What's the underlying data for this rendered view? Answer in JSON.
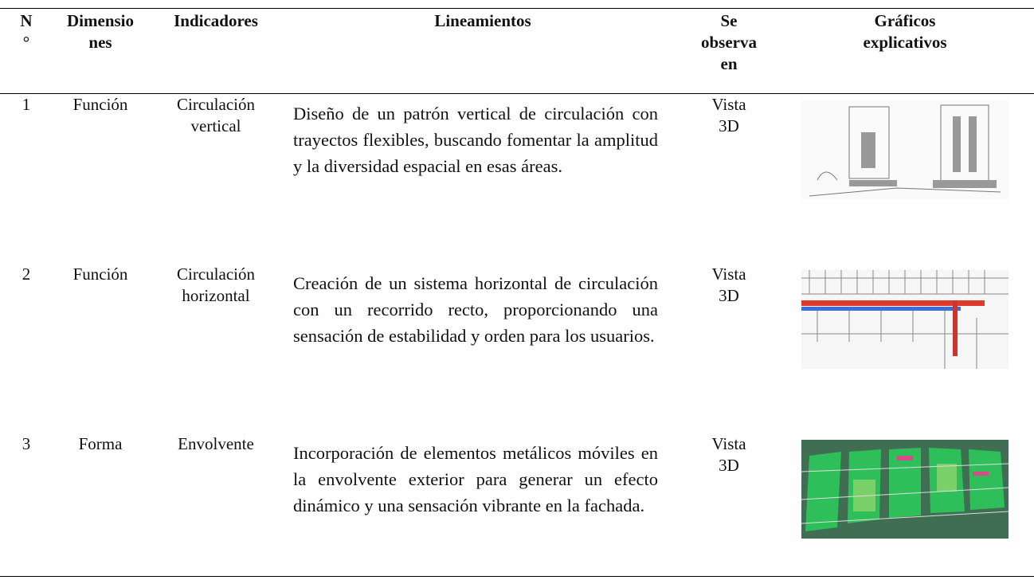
{
  "table": {
    "header": [
      "N°",
      "Dimensiones",
      "Indicadores",
      "Lineamientos",
      "Se observa en",
      "Gráficos explicativos"
    ],
    "rows": [
      [
        "1",
        "Función",
        "Circulación vertical",
        "Diseño de un patrón vertical de circulación con trayectos flexibles, buscando fomentar la amplitud y la diversidad espacial en esas áreas.",
        "Vista 3D"
      ],
      [
        "2",
        "Función",
        "Circulación horizontal",
        "Creación de un sistema horizontal de circulación con un recorrido recto, proporcionando una sensación de estabilidad y orden para los usuarios.",
        "Vista 3D"
      ],
      [
        "3",
        "Forma",
        "Envolvente",
        "Incorporación de elementos metálicos móviles en la envolvente exterior para generar un efecto dinámico y una sensación vibrante en la fachada.",
        "Vista 3D"
      ]
    ]
  }
}
